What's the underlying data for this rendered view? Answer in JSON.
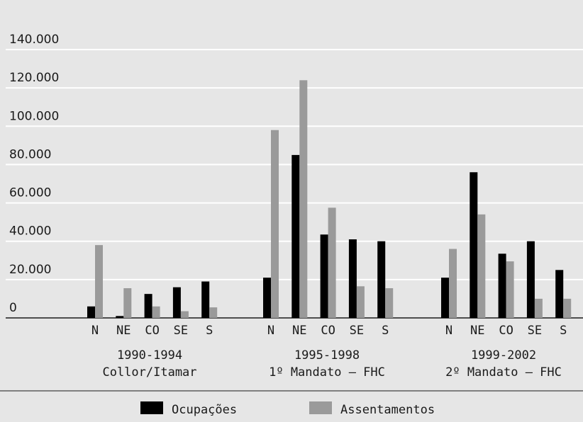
{
  "chart_data": {
    "type": "bar",
    "title": "",
    "xlabel": "",
    "ylabel": "",
    "ylim": [
      0,
      140000
    ],
    "yticks": [
      0,
      20000,
      40000,
      60000,
      80000,
      100000,
      120000,
      140000
    ],
    "ytick_labels": [
      "0",
      "20.000",
      "40.000",
      "60.000",
      "80.000",
      "100.000",
      "120.000",
      "140.000"
    ],
    "grid": true,
    "legend_position": "bottom",
    "groups": [
      {
        "period": "1990-1994",
        "label": "Collor/Itamar",
        "categories": [
          "N",
          "NE",
          "CO",
          "SE",
          "S"
        ],
        "series": [
          {
            "name": "Ocupações",
            "values": [
              6000,
              1000,
              12500,
              16000,
              19000
            ]
          },
          {
            "name": "Assentamentos",
            "values": [
              38000,
              15500,
              6000,
              3500,
              5500
            ]
          }
        ]
      },
      {
        "period": "1995-1998",
        "label": "1º Mandato – FHC",
        "categories": [
          "N",
          "NE",
          "CO",
          "SE",
          "S"
        ],
        "series": [
          {
            "name": "Ocupações",
            "values": [
              21000,
              85000,
              43500,
              41000,
              40000
            ]
          },
          {
            "name": "Assentamentos",
            "values": [
              98000,
              124000,
              57500,
              16500,
              15500
            ]
          }
        ]
      },
      {
        "period": "1999-2002",
        "label": "2º Mandato – FHC",
        "categories": [
          "N",
          "NE",
          "CO",
          "SE",
          "S"
        ],
        "series": [
          {
            "name": "Ocupações",
            "values": [
              21000,
              76000,
              33500,
              40000,
              25000
            ]
          },
          {
            "name": "Assentamentos",
            "values": [
              36000,
              54000,
              29500,
              10000,
              10000
            ]
          }
        ]
      }
    ],
    "legend": [
      {
        "name": "Ocupações",
        "color": "#000000"
      },
      {
        "name": "Assentamentos",
        "color": "#9a9a9a"
      }
    ],
    "colors": {
      "Ocupações": "#000000",
      "Assentamentos": "#9a9a9a",
      "grid": "#ffffff",
      "background": "#e6e6e6"
    }
  }
}
